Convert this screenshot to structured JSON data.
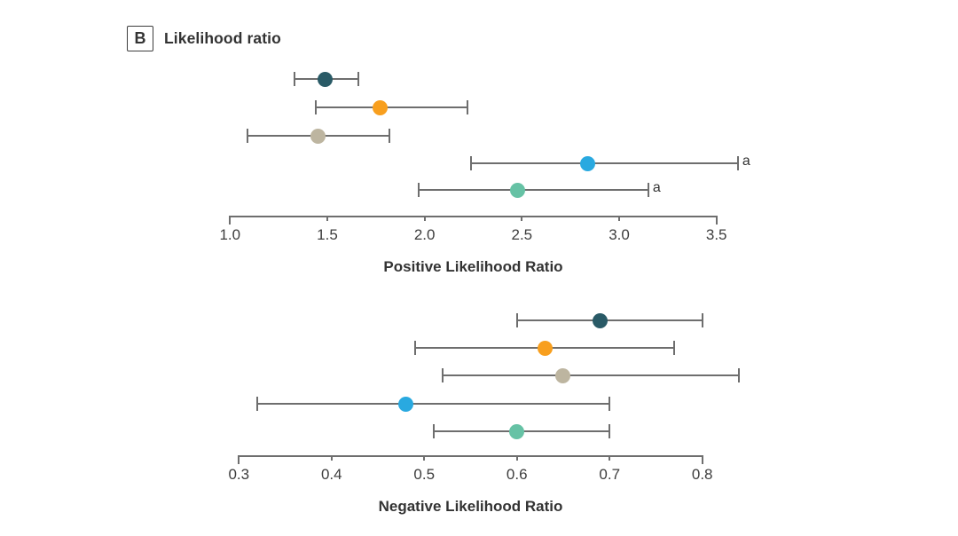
{
  "header": {
    "panel_letter": "B",
    "title": "Likelihood ratio"
  },
  "colors": {
    "axis_line": "#6e6e6e",
    "text": "#333333",
    "series": [
      "#295a66",
      "#f89f1e",
      "#bdb5a0",
      "#29a9e0",
      "#66c2a5"
    ]
  },
  "chart_data": [
    {
      "type": "scatter",
      "subtype": "forest-plot",
      "xlabel": "Positive Likelihood Ratio",
      "xlim": [
        1.0,
        3.5
      ],
      "xticks": [
        1.0,
        1.5,
        2.0,
        2.5,
        3.0,
        3.5
      ],
      "grid": false,
      "legend": false,
      "points": [
        {
          "series": "dark-teal",
          "color": "#295a66",
          "value": 1.49,
          "ci_low": 1.33,
          "ci_high": 1.66,
          "footnote": ""
        },
        {
          "series": "orange",
          "color": "#f89f1e",
          "value": 1.77,
          "ci_low": 1.44,
          "ci_high": 2.22,
          "footnote": ""
        },
        {
          "series": "tan",
          "color": "#bdb5a0",
          "value": 1.45,
          "ci_low": 1.09,
          "ci_high": 1.82,
          "footnote": ""
        },
        {
          "series": "cyan",
          "color": "#29a9e0",
          "value": 2.84,
          "ci_low": 2.24,
          "ci_high": 3.61,
          "footnote": "a"
        },
        {
          "series": "seafoam",
          "color": "#66c2a5",
          "value": 2.48,
          "ci_low": 1.97,
          "ci_high": 3.15,
          "footnote": "a"
        }
      ]
    },
    {
      "type": "scatter",
      "subtype": "forest-plot",
      "xlabel": "Negative Likelihood Ratio",
      "xlim": [
        0.3,
        0.8
      ],
      "xticks": [
        0.3,
        0.4,
        0.5,
        0.6,
        0.7,
        0.8
      ],
      "grid": false,
      "legend": false,
      "points": [
        {
          "series": "dark-teal",
          "color": "#295a66",
          "value": 0.69,
          "ci_low": 0.6,
          "ci_high": 0.8,
          "footnote": ""
        },
        {
          "series": "orange",
          "color": "#f89f1e",
          "value": 0.63,
          "ci_low": 0.49,
          "ci_high": 0.77,
          "footnote": ""
        },
        {
          "series": "tan",
          "color": "#bdb5a0",
          "value": 0.65,
          "ci_low": 0.52,
          "ci_high": 0.84,
          "footnote": ""
        },
        {
          "series": "cyan",
          "color": "#29a9e0",
          "value": 0.48,
          "ci_low": 0.32,
          "ci_high": 0.7,
          "footnote": ""
        },
        {
          "series": "seafoam",
          "color": "#66c2a5",
          "value": 0.6,
          "ci_low": 0.51,
          "ci_high": 0.7,
          "footnote": ""
        }
      ]
    }
  ]
}
